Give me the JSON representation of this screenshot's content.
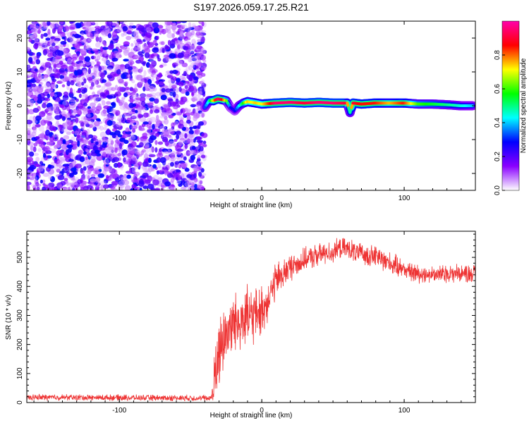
{
  "chart_data": [
    {
      "type": "heatmap",
      "title": "S197.2026.059.17.25.R21",
      "xlabel": "Height of straight line (km)",
      "ylabel": "Frequency (Hz)",
      "xlim": [
        -165,
        150
      ],
      "ylim": [
        -25,
        25
      ],
      "xticks": [
        -100,
        0,
        100
      ],
      "xtick_labels": [
        "-100",
        "0",
        "100"
      ],
      "yticks": [
        -20,
        -10,
        0,
        10,
        20
      ],
      "ytick_labels": [
        "-20",
        "-10",
        "0",
        "10",
        "20"
      ],
      "noise_region_x": [
        -165,
        -40
      ],
      "noise_intensity_range": [
        0.0,
        0.25
      ],
      "signal_track": {
        "x": [
          -40,
          -37,
          -34,
          -31,
          -28,
          -25,
          -22,
          -19,
          -16,
          -13,
          -10,
          -7,
          -4,
          0,
          10,
          20,
          30,
          40,
          50,
          60,
          62,
          64,
          70,
          80,
          90,
          100,
          110,
          120,
          130,
          140,
          148
        ],
        "freq": [
          -0.5,
          1.5,
          1.5,
          2.0,
          1.8,
          1.5,
          -0.5,
          -1.5,
          0.0,
          0.8,
          1.2,
          1.0,
          0.8,
          0.5,
          0.8,
          1.0,
          0.8,
          1.0,
          0.8,
          0.8,
          -2.0,
          0.8,
          0.5,
          0.8,
          0.8,
          0.8,
          0.5,
          0.5,
          0.3,
          0.0,
          0.0
        ],
        "amplitude": [
          0.3,
          0.45,
          0.7,
          0.95,
          0.9,
          0.7,
          0.3,
          0.25,
          0.4,
          0.55,
          0.75,
          0.7,
          0.75,
          0.7,
          0.95,
          0.95,
          0.9,
          0.95,
          0.95,
          0.9,
          0.35,
          0.9,
          0.85,
          0.85,
          0.75,
          0.85,
          0.6,
          0.55,
          0.5,
          0.45,
          0.4
        ]
      },
      "colorbar": {
        "label": "Normalized spectral amplitude",
        "range": [
          0.0,
          1.0
        ],
        "ticks": [
          0.0,
          0.2,
          0.4,
          0.6,
          0.8
        ],
        "tick_labels": [
          "0.0",
          "0.2",
          "0.4",
          "0.6",
          "0.8"
        ],
        "colors": [
          "#ffffff",
          "#8a00ff",
          "#0000ff",
          "#00ffff",
          "#00ff00",
          "#ffff00",
          "#ff0000",
          "#ff00aa"
        ]
      }
    },
    {
      "type": "line",
      "xlabel": "Height of straight line (km)",
      "ylabel": "SNR (10 * v/v)",
      "xlim": [
        -165,
        150
      ],
      "ylim": [
        0,
        590
      ],
      "xticks": [
        -100,
        0,
        100
      ],
      "xtick_labels": [
        "-100",
        "0",
        "100"
      ],
      "yticks": [
        0,
        100,
        200,
        300,
        400,
        500
      ],
      "ytick_labels": [
        "0",
        "100",
        "200",
        "300",
        "400",
        "500"
      ],
      "color": "#ee3333",
      "series": [
        {
          "name": "SNR",
          "x": [
            -165,
            -140,
            -120,
            -100,
            -80,
            -60,
            -40,
            -36,
            -34,
            -33,
            -30,
            -27,
            -24,
            -20,
            -15,
            -10,
            -5,
            0,
            5,
            10,
            15,
            20,
            25,
            30,
            40,
            50,
            55,
            60,
            70,
            80,
            90,
            95,
            100,
            105,
            110,
            120,
            130,
            140,
            150
          ],
          "mean": [
            18,
            18,
            17,
            17,
            16,
            16,
            15,
            15,
            40,
            90,
            170,
            220,
            250,
            270,
            290,
            295,
            300,
            315,
            360,
            420,
            445,
            465,
            480,
            490,
            510,
            520,
            530,
            530,
            510,
            505,
            480,
            470,
            460,
            450,
            445,
            440,
            445,
            445,
            445
          ],
          "amplitude": [
            10,
            10,
            10,
            10,
            10,
            10,
            10,
            8,
            60,
            110,
            130,
            110,
            100,
            100,
            100,
            100,
            90,
            80,
            70,
            60,
            50,
            45,
            40,
            40,
            35,
            35,
            35,
            35,
            35,
            35,
            35,
            35,
            30,
            30,
            30,
            30,
            30,
            30,
            30
          ]
        }
      ]
    }
  ]
}
